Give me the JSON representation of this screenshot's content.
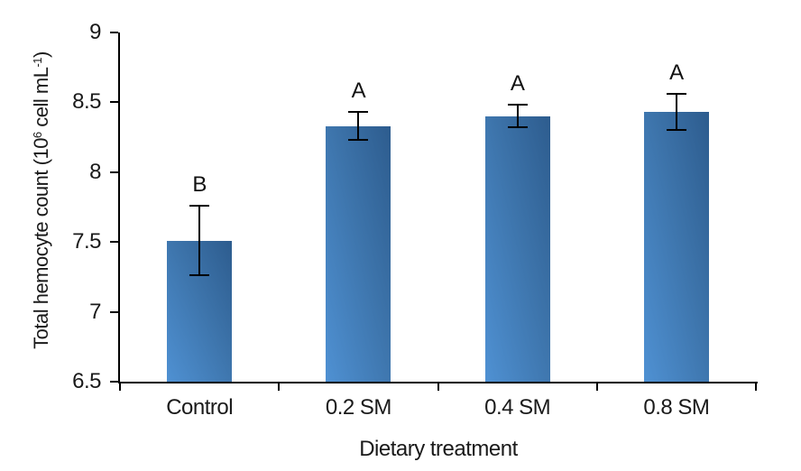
{
  "chart_data": {
    "type": "bar",
    "title": "",
    "xlabel": "Dietary treatment",
    "ylabel": "Total hemocyte count (10⁶ cell mL⁻¹)",
    "ylabel_parts": {
      "pre": "Total hemocyte count (10",
      "sup1": "6",
      "mid": " cell mL",
      "sup2": "-1",
      "post": ")"
    },
    "categories": [
      "Control",
      "0.2 SM",
      "0.4 SM",
      "0.8 SM"
    ],
    "values": [
      7.51,
      8.33,
      8.4,
      8.43
    ],
    "errors": [
      0.25,
      0.1,
      0.08,
      0.13
    ],
    "significance_letters": [
      "B",
      "A",
      "A",
      "A"
    ],
    "yticks": [
      9,
      8.5,
      8,
      7.5,
      7,
      6.5
    ],
    "ytick_labels": [
      "9",
      "8.5",
      "8",
      "7.5",
      "7",
      "6.5"
    ],
    "ylim": [
      6.5,
      9
    ],
    "grid": false,
    "legend": false,
    "bar_color_light": "#4f91d3",
    "bar_color_dark": "#2d5c8e",
    "axis_color": "#000000",
    "text_color": "#1a1a1a"
  }
}
